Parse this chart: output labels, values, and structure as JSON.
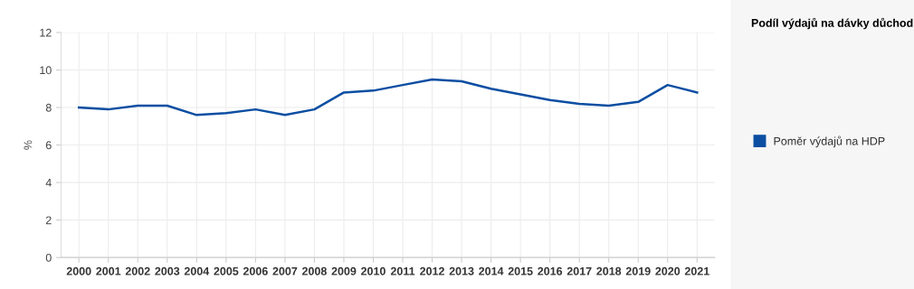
{
  "chart_data": {
    "type": "line",
    "legend_title": "Podíl výdajů na dávky důchod",
    "ylabel": "%",
    "categories": [
      "2000",
      "2001",
      "2002",
      "2003",
      "2004",
      "2005",
      "2006",
      "2007",
      "2008",
      "2009",
      "2010",
      "2011",
      "2012",
      "2013",
      "2014",
      "2015",
      "2016",
      "2017",
      "2018",
      "2019",
      "2020",
      "2021"
    ],
    "series": [
      {
        "name": "Poměr výdajů na HDP",
        "color": "#0b4ea2",
        "values": [
          8.0,
          7.9,
          8.1,
          8.1,
          7.6,
          7.7,
          7.9,
          7.6,
          7.9,
          8.8,
          8.9,
          9.2,
          9.5,
          9.4,
          9.0,
          8.7,
          8.4,
          8.2,
          8.1,
          8.3,
          9.2,
          8.8
        ]
      }
    ],
    "ylim": [
      0,
      12
    ],
    "yticks": [
      0,
      2,
      4,
      6,
      8,
      10,
      12
    ],
    "grid": true,
    "legend": "right",
    "marker": "none",
    "line_style": "solid"
  }
}
